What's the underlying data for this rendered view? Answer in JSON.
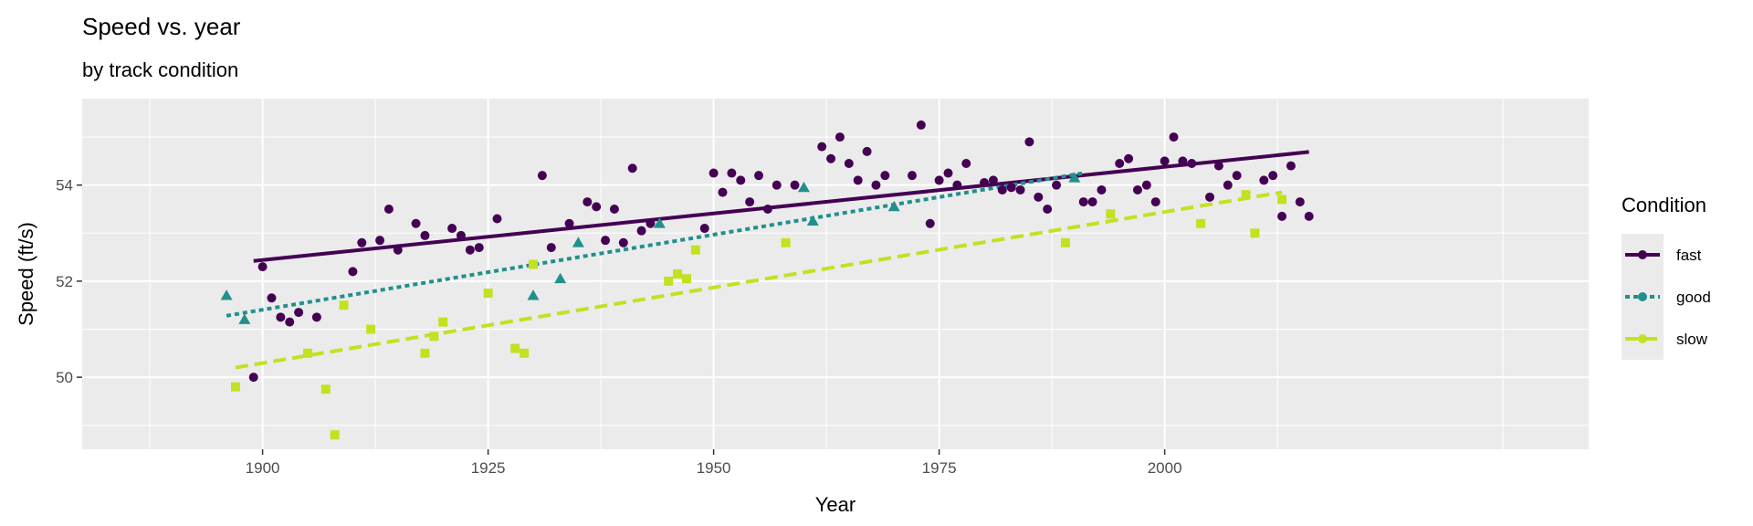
{
  "chart_data": {
    "type": "scatter",
    "title": "Speed vs. year",
    "subtitle": "by track condition",
    "xlabel": "Year",
    "ylabel": "Speed (ft/s)",
    "xlim": [
      1880,
      2047
    ],
    "ylim": [
      48.5,
      55.8
    ],
    "xticks": [
      1900,
      1925,
      1950,
      1975,
      2000
    ],
    "yticks": [
      50,
      52,
      54
    ],
    "grid": true,
    "legend_title": "Condition",
    "legend_position": "right",
    "series": [
      {
        "name": "fast",
        "color": "#440154",
        "marker": "circle",
        "linestyle": "solid",
        "fit": {
          "x": [
            1899,
            2016
          ],
          "y": [
            52.42,
            54.69
          ]
        },
        "points": [
          [
            1899,
            50.0
          ],
          [
            1900,
            52.3
          ],
          [
            1901,
            51.65
          ],
          [
            1902,
            51.25
          ],
          [
            1903,
            51.15
          ],
          [
            1904,
            51.35
          ],
          [
            1906,
            51.25
          ],
          [
            1910,
            52.2
          ],
          [
            1911,
            52.8
          ],
          [
            1913,
            52.85
          ],
          [
            1914,
            53.5
          ],
          [
            1915,
            52.65
          ],
          [
            1917,
            53.2
          ],
          [
            1918,
            52.95
          ],
          [
            1921,
            53.1
          ],
          [
            1922,
            52.95
          ],
          [
            1923,
            52.65
          ],
          [
            1924,
            52.7
          ],
          [
            1926,
            53.3
          ],
          [
            1931,
            54.2
          ],
          [
            1932,
            52.7
          ],
          [
            1934,
            53.2
          ],
          [
            1936,
            53.65
          ],
          [
            1937,
            53.55
          ],
          [
            1938,
            52.85
          ],
          [
            1939,
            53.5
          ],
          [
            1940,
            52.8
          ],
          [
            1941,
            54.35
          ],
          [
            1942,
            53.05
          ],
          [
            1943,
            53.2
          ],
          [
            1949,
            53.1
          ],
          [
            1950,
            54.25
          ],
          [
            1951,
            53.85
          ],
          [
            1952,
            54.25
          ],
          [
            1953,
            54.1
          ],
          [
            1954,
            53.65
          ],
          [
            1955,
            54.2
          ],
          [
            1956,
            53.5
          ],
          [
            1957,
            54.0
          ],
          [
            1959,
            54.0
          ],
          [
            1962,
            54.8
          ],
          [
            1963,
            54.55
          ],
          [
            1964,
            55.0
          ],
          [
            1965,
            54.45
          ],
          [
            1966,
            54.1
          ],
          [
            1967,
            54.7
          ],
          [
            1968,
            54.0
          ],
          [
            1969,
            54.2
          ],
          [
            1972,
            54.2
          ],
          [
            1973,
            55.25
          ],
          [
            1974,
            53.2
          ],
          [
            1975,
            54.1
          ],
          [
            1976,
            54.25
          ],
          [
            1977,
            54.0
          ],
          [
            1978,
            54.45
          ],
          [
            1980,
            54.05
          ],
          [
            1981,
            54.1
          ],
          [
            1982,
            53.9
          ],
          [
            1983,
            53.95
          ],
          [
            1984,
            53.9
          ],
          [
            1985,
            54.9
          ],
          [
            1986,
            53.75
          ],
          [
            1987,
            53.5
          ],
          [
            1988,
            54.0
          ],
          [
            1991,
            53.65
          ],
          [
            1992,
            53.65
          ],
          [
            1993,
            53.9
          ],
          [
            1995,
            54.45
          ],
          [
            1996,
            54.55
          ],
          [
            1997,
            53.9
          ],
          [
            1998,
            54.0
          ],
          [
            1999,
            53.65
          ],
          [
            2000,
            54.5
          ],
          [
            2001,
            55.0
          ],
          [
            2002,
            54.5
          ],
          [
            2003,
            54.45
          ],
          [
            2005,
            53.75
          ],
          [
            2006,
            54.4
          ],
          [
            2007,
            54.0
          ],
          [
            2008,
            54.2
          ],
          [
            2011,
            54.1
          ],
          [
            2012,
            54.2
          ],
          [
            2014,
            54.4
          ],
          [
            2016,
            53.35
          ],
          [
            2013,
            53.35
          ],
          [
            2015,
            53.65
          ]
        ]
      },
      {
        "name": "good",
        "color": "#21908C",
        "marker": "triangle",
        "linestyle": "dotted",
        "fit": {
          "x": [
            1896,
            1991
          ],
          "y": [
            51.28,
            54.25
          ]
        },
        "points": [
          [
            1896,
            51.7
          ],
          [
            1898,
            51.2
          ],
          [
            1930,
            51.7
          ],
          [
            1933,
            52.05
          ],
          [
            1935,
            52.8
          ],
          [
            1944,
            53.2
          ],
          [
            1960,
            53.95
          ],
          [
            1961,
            53.25
          ],
          [
            1970,
            53.55
          ],
          [
            1990,
            54.15
          ]
        ]
      },
      {
        "name": "slow",
        "color": "#C5E021",
        "marker": "square",
        "linestyle": "dashed",
        "fit": {
          "x": [
            1897,
            2013
          ],
          "y": [
            50.2,
            53.85
          ]
        },
        "points": [
          [
            1897,
            49.8
          ],
          [
            1905,
            50.5
          ],
          [
            1907,
            49.75
          ],
          [
            1908,
            48.8
          ],
          [
            1909,
            51.5
          ],
          [
            1912,
            51.0
          ],
          [
            1918,
            50.5
          ],
          [
            1919,
            50.85
          ],
          [
            1920,
            51.15
          ],
          [
            1925,
            51.75
          ],
          [
            1928,
            50.6
          ],
          [
            1929,
            50.5
          ],
          [
            1930,
            52.35
          ],
          [
            1945,
            52.0
          ],
          [
            1946,
            52.15
          ],
          [
            1947,
            52.05
          ],
          [
            1948,
            52.65
          ],
          [
            1958,
            52.8
          ],
          [
            1989,
            52.8
          ],
          [
            1994,
            53.4
          ],
          [
            2004,
            53.2
          ],
          [
            2009,
            53.8
          ],
          [
            2010,
            53.0
          ],
          [
            2013,
            53.7
          ]
        ]
      }
    ]
  }
}
